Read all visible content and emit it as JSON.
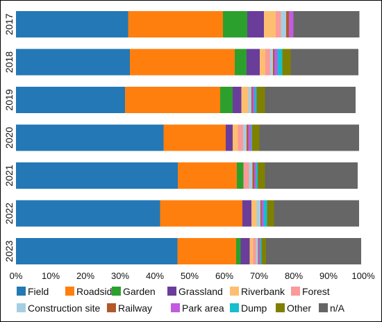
{
  "chart_data": {
    "type": "bar",
    "orientation": "horizontal",
    "stacked": true,
    "normalized": true,
    "title": "",
    "xlabel": "",
    "ylabel": "",
    "xlim": [
      0,
      100
    ],
    "x_ticks": [
      "0%",
      "10%",
      "20%",
      "30%",
      "40%",
      "50%",
      "60%",
      "70%",
      "80%",
      "90%",
      "100%"
    ],
    "grid": false,
    "legend_position": "bottom",
    "categories": [
      "2017",
      "2018",
      "2019",
      "2020",
      "2021",
      "2022",
      "2023"
    ],
    "series": [
      {
        "name": "Field",
        "color": "#2378b5",
        "values": [
          32.3,
          32.8,
          31.4,
          42.5,
          46.6,
          41.5,
          46.5
        ]
      },
      {
        "name": "Roadside",
        "color": "#ff7f0e",
        "values": [
          27.3,
          30.2,
          27.4,
          17.9,
          17.0,
          23.7,
          16.9
        ]
      },
      {
        "name": "Garden",
        "color": "#2ca02c",
        "values": [
          7.0,
          3.4,
          3.6,
          0.0,
          1.9,
          0.0,
          1.3
        ]
      },
      {
        "name": "Grassland",
        "color": "#6a3d9a",
        "values": [
          4.8,
          3.8,
          2.5,
          2.0,
          0.0,
          2.6,
          2.6
        ]
      },
      {
        "name": "Riverbank",
        "color": "#fdbf6f",
        "values": [
          3.4,
          1.6,
          2.0,
          1.5,
          0.0,
          1.5,
          1.0
        ]
      },
      {
        "name": "Forest",
        "color": "#fb9a99",
        "values": [
          1.5,
          1.4,
          0.0,
          1.5,
          1.6,
          0.0,
          0.8
        ]
      },
      {
        "name": "Construction site",
        "color": "#a6cee3",
        "values": [
          1.5,
          0.8,
          0.9,
          1.0,
          1.0,
          1.1,
          0.6
        ]
      },
      {
        "name": "Railway",
        "color": "#b15928",
        "values": [
          0.8,
          0.4,
          0.3,
          0.5,
          0.5,
          0.3,
          0.2
        ]
      },
      {
        "name": "Park area",
        "color": "#c25be0",
        "values": [
          1.3,
          0.9,
          0.6,
          0.8,
          0.5,
          0.6,
          0.4
        ]
      },
      {
        "name": "Dump",
        "color": "#17becf",
        "values": [
          0.0,
          1.4,
          0.6,
          0.3,
          0.5,
          1.0,
          0.4
        ]
      },
      {
        "name": "Other",
        "color": "#808000",
        "values": [
          0.0,
          2.4,
          2.4,
          2.1,
          2.1,
          2.0,
          1.3
        ]
      },
      {
        "name": "n/A",
        "color": "#666666",
        "values": [
          19.0,
          19.5,
          26.1,
          28.7,
          26.7,
          24.5,
          27.4
        ]
      }
    ]
  }
}
